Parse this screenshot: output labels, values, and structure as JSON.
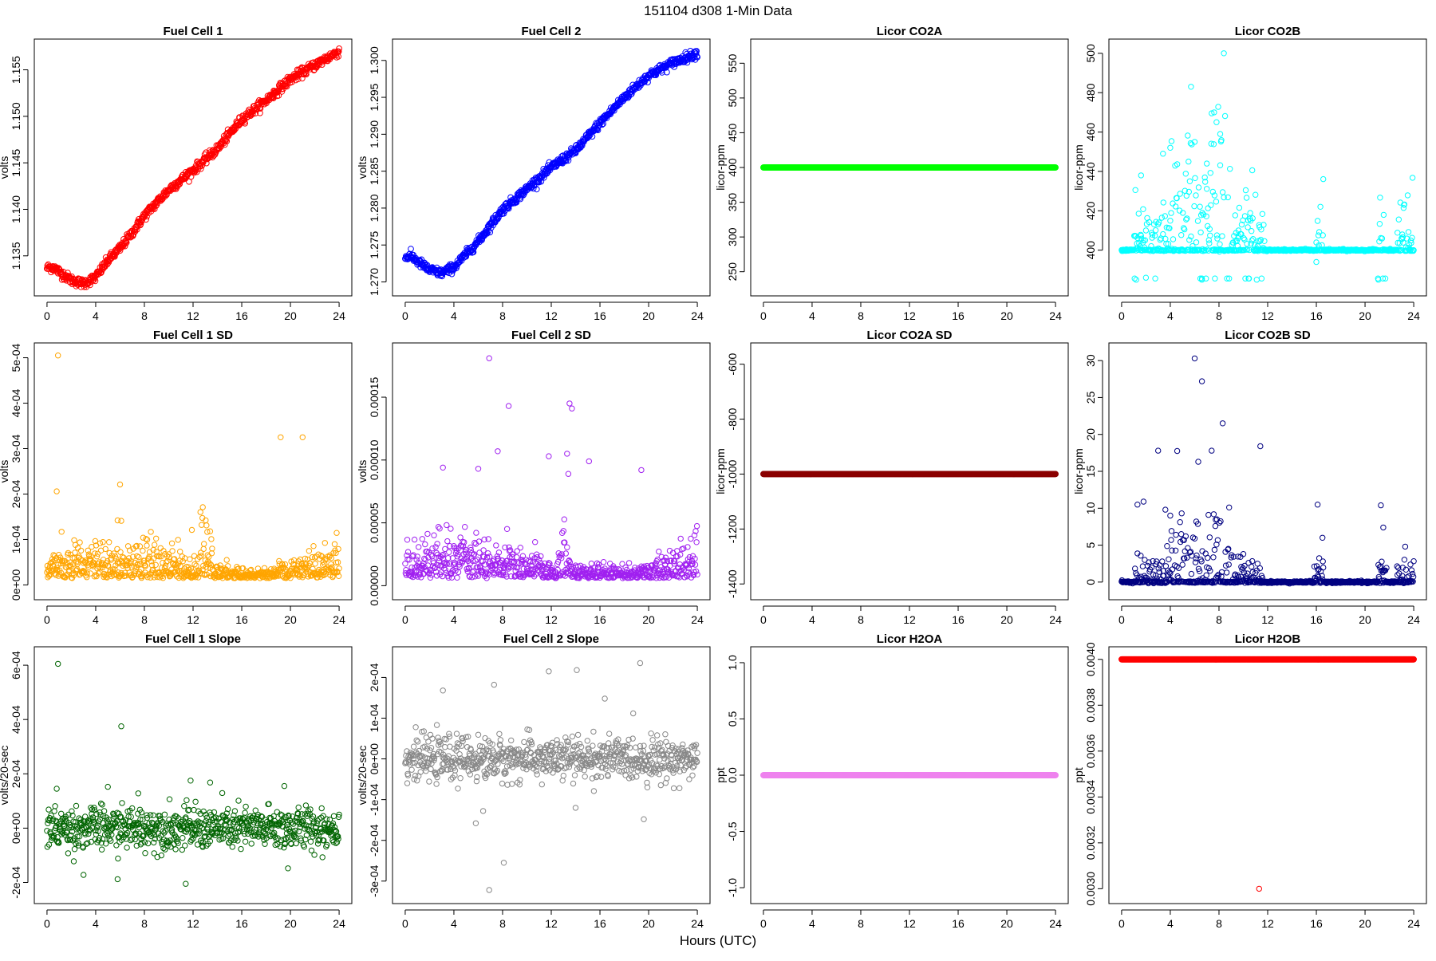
{
  "figure": {
    "main_title": "151104   d308   1-Min Data",
    "xlabel": "Hours (UTC)"
  },
  "chart_data": [
    {
      "title": "Fuel Cell 1",
      "type": "scatter",
      "ylabel": "volts",
      "color": "#ff0000",
      "xlim": [
        0,
        24
      ],
      "ylim": [
        1.1318,
        1.1572
      ],
      "xticks": [
        0,
        4,
        8,
        12,
        16,
        20,
        24
      ],
      "yticks": [
        1.135,
        1.14,
        1.145,
        1.15,
        1.155
      ],
      "ytick_labels": [
        "1.135",
        "1.140",
        "1.145",
        "1.150",
        "1.155"
      ],
      "series": [
        {
          "kind": "curve",
          "points": [
            [
              0,
              1.1337
            ],
            [
              0.5,
              1.1338
            ],
            [
              1,
              1.1333
            ],
            [
              2,
              1.1324
            ],
            [
              3,
              1.132
            ],
            [
              4,
              1.1327
            ],
            [
              5,
              1.1345
            ],
            [
              6,
              1.1358
            ],
            [
              7,
              1.1375
            ],
            [
              8,
              1.1393
            ],
            [
              10,
              1.1421
            ],
            [
              12,
              1.1442
            ],
            [
              14,
              1.1465
            ],
            [
              16,
              1.1497
            ],
            [
              18,
              1.1517
            ],
            [
              20,
              1.154
            ],
            [
              22,
              1.1555
            ],
            [
              24,
              1.157
            ]
          ],
          "jitter": 0.00025
        }
      ]
    },
    {
      "title": "Fuel Cell 2",
      "type": "scatter",
      "ylabel": "volts",
      "color": "#0000ff",
      "xlim": [
        0,
        24
      ],
      "ylim": [
        1.2695,
        1.3015
      ],
      "xticks": [
        0,
        4,
        8,
        12,
        16,
        20,
        24
      ],
      "yticks": [
        1.27,
        1.275,
        1.28,
        1.285,
        1.29,
        1.295,
        1.3
      ],
      "ytick_labels": [
        "1.270",
        "1.275",
        "1.280",
        "1.285",
        "1.290",
        "1.295",
        "1.300"
      ],
      "series": [
        {
          "kind": "curve",
          "points": [
            [
              0,
              1.2733
            ],
            [
              0.5,
              1.2735
            ],
            [
              1,
              1.2728
            ],
            [
              2,
              1.2716
            ],
            [
              3,
              1.2712
            ],
            [
              4,
              1.272
            ],
            [
              6,
              1.2755
            ],
            [
              8,
              1.2798
            ],
            [
              10,
              1.2826
            ],
            [
              12,
              1.2855
            ],
            [
              14,
              1.2878
            ],
            [
              16,
              1.2915
            ],
            [
              18,
              1.295
            ],
            [
              20,
              1.298
            ],
            [
              22,
              1.2997
            ],
            [
              24,
              1.301
            ]
          ],
          "jitter": 0.0003
        }
      ]
    },
    {
      "title": "Licor CO2A",
      "type": "scatter",
      "ylabel": "licor-ppm",
      "color": "#00ff00",
      "xlim": [
        0,
        24
      ],
      "ylim": [
        230,
        570
      ],
      "xticks": [
        0,
        4,
        8,
        12,
        16,
        20,
        24
      ],
      "yticks": [
        250,
        300,
        350,
        400,
        450,
        500,
        550
      ],
      "ytick_labels": [
        "250",
        "300",
        "350",
        "400",
        "450",
        "500",
        "550"
      ],
      "series": [
        {
          "kind": "flat",
          "y": 400
        }
      ]
    },
    {
      "title": "Licor CO2B",
      "type": "scatter",
      "ylabel": "licor-ppm",
      "color": "#00ffff",
      "xlim": [
        0,
        24
      ],
      "ylim": [
        382,
        502
      ],
      "xticks": [
        0,
        4,
        8,
        12,
        16,
        20,
        24
      ],
      "yticks": [
        400,
        420,
        440,
        460,
        480,
        500
      ],
      "ytick_labels": [
        "400",
        "420",
        "440",
        "460",
        "480",
        "500"
      ],
      "series": [
        {
          "kind": "flat",
          "y": 400
        }
      ],
      "highlights": [
        [
          5.7,
          483
        ],
        [
          8.4,
          500
        ],
        [
          7.6,
          470
        ],
        [
          7.8,
          465
        ],
        [
          4.0,
          452
        ],
        [
          3.4,
          449
        ],
        [
          6.0,
          455
        ],
        [
          8.1,
          459
        ],
        [
          5.5,
          445
        ],
        [
          7.0,
          444
        ],
        [
          1.6,
          438
        ],
        [
          1.2,
          385
        ],
        [
          2.0,
          386
        ],
        [
          6.6,
          385
        ],
        [
          11.1,
          385
        ],
        [
          16.0,
          394
        ],
        [
          21.1,
          385
        ],
        [
          9.6,
          410
        ]
      ]
    },
    {
      "title": "Fuel Cell 1 SD",
      "type": "scatter",
      "ylabel": "volts",
      "color": "#ffa500",
      "xlim": [
        0,
        24
      ],
      "ylim": [
        -1e-05,
        0.00051
      ],
      "xticks": [
        0,
        4,
        8,
        12,
        16,
        20,
        24
      ],
      "yticks": [
        0,
        0.0001,
        0.0002,
        0.0003,
        0.0004,
        0.0005
      ],
      "ytick_labels": [
        "0e+00",
        "1e-04",
        "2e-04",
        "3e-04",
        "4e-04",
        "5e-04"
      ],
      "series": [
        {
          "kind": "flat",
          "y": 3e-05
        }
      ],
      "highlights": [
        [
          0.9,
          0.000505
        ],
        [
          0.8,
          0.000206
        ],
        [
          19.2,
          0.000325
        ],
        [
          21.0,
          0.000325
        ],
        [
          6.0,
          0.000221
        ],
        [
          12.8,
          0.000171
        ],
        [
          6.1,
          0.000141
        ],
        [
          13.1,
          0.000131
        ],
        [
          11.9,
          0.000121
        ],
        [
          5.8,
          0.000142
        ],
        [
          13.4,
          0.000118
        ]
      ]
    },
    {
      "title": "Fuel Cell 2 SD",
      "type": "scatter",
      "ylabel": "volts",
      "color": "#a020f0",
      "xlim": [
        0,
        24
      ],
      "ylim": [
        -3e-06,
        0.000185
      ],
      "xticks": [
        0,
        4,
        8,
        12,
        16,
        20,
        24
      ],
      "yticks": [
        0,
        5e-05,
        0.0001,
        0.00015
      ],
      "ytick_labels": [
        "0.00000",
        "0.00005",
        "0.00010",
        "0.00015"
      ],
      "series": [
        {
          "kind": "flat",
          "y": 1.2e-05
        }
      ],
      "highlights": [
        [
          6.9,
          0.000181
        ],
        [
          8.5,
          0.000143
        ],
        [
          13.5,
          0.000145
        ],
        [
          13.7,
          0.000141
        ],
        [
          7.6,
          0.000107
        ],
        [
          11.8,
          0.000103
        ],
        [
          13.3,
          0.000105
        ],
        [
          19.4,
          9.2e-05
        ],
        [
          15.1,
          9.9e-05
        ],
        [
          6.0,
          9.3e-05
        ],
        [
          3.1,
          9.4e-05
        ],
        [
          13.4,
          8.9e-05
        ]
      ]
    },
    {
      "title": "Licor CO2A SD",
      "type": "scatter",
      "ylabel": "licor-ppm",
      "color": "#8b0000",
      "xlim": [
        0,
        24
      ],
      "ylim": [
        -1420,
        -560
      ],
      "xticks": [
        0,
        4,
        8,
        12,
        16,
        20,
        24
      ],
      "yticks": [
        -1400,
        -1200,
        -1000,
        -800,
        -600
      ],
      "ytick_labels": [
        "-1400",
        "-1200",
        "-1000",
        "-800",
        "-600"
      ],
      "series": [
        {
          "kind": "flat",
          "y": -1000
        }
      ]
    },
    {
      "title": "Licor CO2B SD",
      "type": "scatter",
      "ylabel": "licor-ppm",
      "color": "#000080",
      "xlim": [
        0,
        24
      ],
      "ylim": [
        -1,
        31
      ],
      "xticks": [
        0,
        4,
        8,
        12,
        16,
        20,
        24
      ],
      "yticks": [
        0,
        5,
        10,
        15,
        20,
        25,
        30
      ],
      "ytick_labels": [
        "0",
        "5",
        "10",
        "15",
        "20",
        "25",
        "30"
      ],
      "series": [
        {
          "kind": "flat",
          "y": 0
        }
      ],
      "highlights": [
        [
          6.0,
          30.3
        ],
        [
          6.6,
          27.2
        ],
        [
          8.3,
          21.5
        ],
        [
          11.4,
          18.4
        ],
        [
          3.0,
          17.8
        ],
        [
          7.4,
          17.8
        ],
        [
          6.3,
          16.3
        ],
        [
          16.1,
          10.5
        ],
        [
          21.3,
          10.4
        ],
        [
          1.3,
          10.5
        ],
        [
          1.8,
          10.9
        ],
        [
          3.6,
          9.8
        ],
        [
          16.5,
          6.0
        ],
        [
          21.5,
          7.4
        ],
        [
          23.3,
          4.8
        ],
        [
          4.0,
          9.0
        ]
      ]
    },
    {
      "title": "Fuel Cell 1 Slope",
      "type": "scatter",
      "ylabel": "volts/20-sec",
      "color": "#006400",
      "xlim": [
        0,
        24
      ],
      "ylim": [
        -0.00024,
        0.00063
      ],
      "xticks": [
        0,
        4,
        8,
        12,
        16,
        20,
        24
      ],
      "yticks": [
        -0.0002,
        0,
        0.0002,
        0.0004,
        0.0006
      ],
      "ytick_labels": [
        "-2e-04",
        "0e+00",
        "2e-04",
        "4e-04",
        "6e-04"
      ],
      "series": [
        {
          "kind": "flat",
          "y": 0
        }
      ],
      "highlights": [
        [
          0.9,
          0.000605
        ],
        [
          6.1,
          0.000375
        ],
        [
          11.8,
          0.000175
        ],
        [
          13.4,
          0.000168
        ],
        [
          0.8,
          0.000145
        ],
        [
          5.0,
          0.000152
        ],
        [
          3.0,
          -0.000172
        ],
        [
          5.8,
          -0.000188
        ],
        [
          11.4,
          -0.000205
        ],
        [
          19.5,
          0.000155
        ],
        [
          7.5,
          0.000128
        ],
        [
          19.8,
          -0.000148
        ]
      ]
    },
    {
      "title": "Fuel Cell 2 Slope",
      "type": "scatter",
      "ylabel": "volts/20-sec",
      "color": "#888888",
      "xlim": [
        0,
        24
      ],
      "ylim": [
        -0.00033,
        0.00025
      ],
      "xticks": [
        0,
        4,
        8,
        12,
        16,
        20,
        24
      ],
      "yticks": [
        -0.0003,
        -0.0002,
        -0.0001,
        0,
        0.0001,
        0.0002
      ],
      "ytick_labels": [
        "-3e-04",
        "-2e-04",
        "-1e-04",
        "0e+00",
        "1e-04",
        "2e-04"
      ],
      "series": [
        {
          "kind": "flat",
          "y": 0
        }
      ],
      "highlights": [
        [
          6.9,
          -0.000322
        ],
        [
          8.1,
          -0.000255
        ],
        [
          19.3,
          0.000235
        ],
        [
          11.8,
          0.000215
        ],
        [
          14.1,
          0.000218
        ],
        [
          3.1,
          0.000168
        ],
        [
          7.3,
          0.000182
        ],
        [
          5.8,
          -0.000158
        ],
        [
          19.6,
          -0.000148
        ],
        [
          16.4,
          0.000148
        ],
        [
          14.0,
          -0.00012
        ],
        [
          6.4,
          -0.000128
        ]
      ]
    },
    {
      "title": "Licor H2OA",
      "type": "scatter",
      "ylabel": "ppt",
      "color": "#ee82ee",
      "xlim": [
        0,
        24
      ],
      "ylim": [
        -1.05,
        1.05
      ],
      "xticks": [
        0,
        4,
        8,
        12,
        16,
        20,
        24
      ],
      "yticks": [
        -1,
        -0.5,
        0,
        0.5,
        1
      ],
      "ytick_labels": [
        "-1.0",
        "-0.5",
        "0.0",
        "0.5",
        "1.0"
      ],
      "series": [
        {
          "kind": "flat",
          "y": 0
        }
      ]
    },
    {
      "title": "Licor H2OB",
      "type": "scatter",
      "ylabel": "ppt",
      "color": "#ff0000",
      "xlim": [
        0,
        24
      ],
      "ylim": [
        0.00298,
        0.00401
      ],
      "xticks": [
        0,
        4,
        8,
        12,
        16,
        20,
        24
      ],
      "yticks": [
        0.003,
        0.0032,
        0.0034,
        0.0036,
        0.0038,
        0.004
      ],
      "ytick_labels": [
        "0.0030",
        "0.0032",
        "0.0034",
        "0.0036",
        "0.0038",
        "0.0040"
      ],
      "series": [
        {
          "kind": "flat",
          "y": 0.004
        }
      ],
      "highlights": [
        [
          11.3,
          0.003
        ]
      ]
    }
  ]
}
